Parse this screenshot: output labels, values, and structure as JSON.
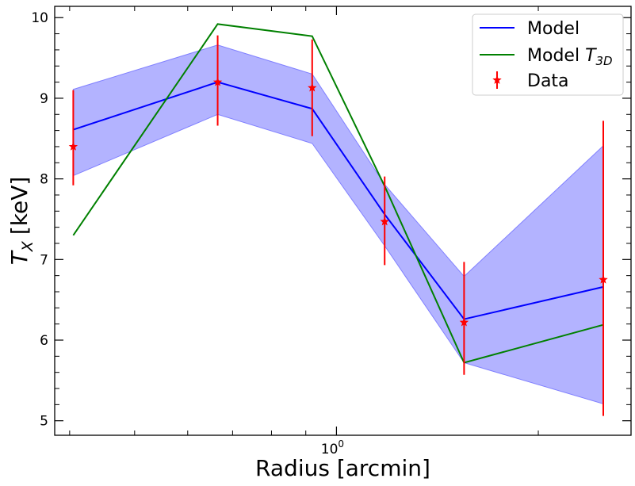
{
  "chart_data": {
    "type": "line",
    "title": "",
    "xlabel": "Radius [arcmin]",
    "ylabel_main": "T",
    "ylabel_sub": "X",
    "ylabel_unit": "[keV]",
    "xscale": "log",
    "xlim": [
      0.38,
      2.75
    ],
    "ylim": [
      4.82,
      10.14
    ],
    "yticks": [
      5,
      6,
      7,
      8,
      9,
      10
    ],
    "xtick_major_base": "10",
    "xtick_major_exp": "0",
    "xtick_major_value": 1.0,
    "grid": false,
    "legend_position": "top-right",
    "series": [
      {
        "name": "Model",
        "kind": "line",
        "color": "#0000ff",
        "x": [
          0.405,
          0.665,
          0.92,
          1.18,
          1.55,
          2.5
        ],
        "y": [
          8.61,
          9.2,
          8.87,
          7.56,
          6.26,
          6.66
        ],
        "band_lower": [
          8.04,
          8.8,
          8.44,
          7.17,
          5.72,
          5.21
        ],
        "band_upper": [
          9.11,
          9.66,
          9.3,
          7.93,
          6.79,
          8.41
        ],
        "band_color": "#8080ff"
      },
      {
        "name": "Model",
        "name_sub": "3D",
        "name_italic": "T",
        "kind": "line",
        "color": "#008000",
        "x": [
          0.405,
          0.665,
          0.92,
          1.18,
          1.55,
          2.5
        ],
        "y": [
          7.3,
          9.92,
          9.77,
          7.91,
          5.72,
          6.19
        ]
      },
      {
        "name": "Data",
        "kind": "errorbar",
        "color": "#ff0000",
        "x": [
          0.405,
          0.665,
          0.92,
          1.18,
          1.55,
          2.5
        ],
        "y": [
          8.4,
          9.2,
          9.13,
          7.47,
          6.22,
          6.75
        ],
        "yerr_lower": [
          7.92,
          8.66,
          8.53,
          6.93,
          5.57,
          5.06
        ],
        "yerr_upper": [
          9.1,
          9.78,
          9.73,
          8.03,
          6.97,
          8.72
        ]
      }
    ]
  }
}
